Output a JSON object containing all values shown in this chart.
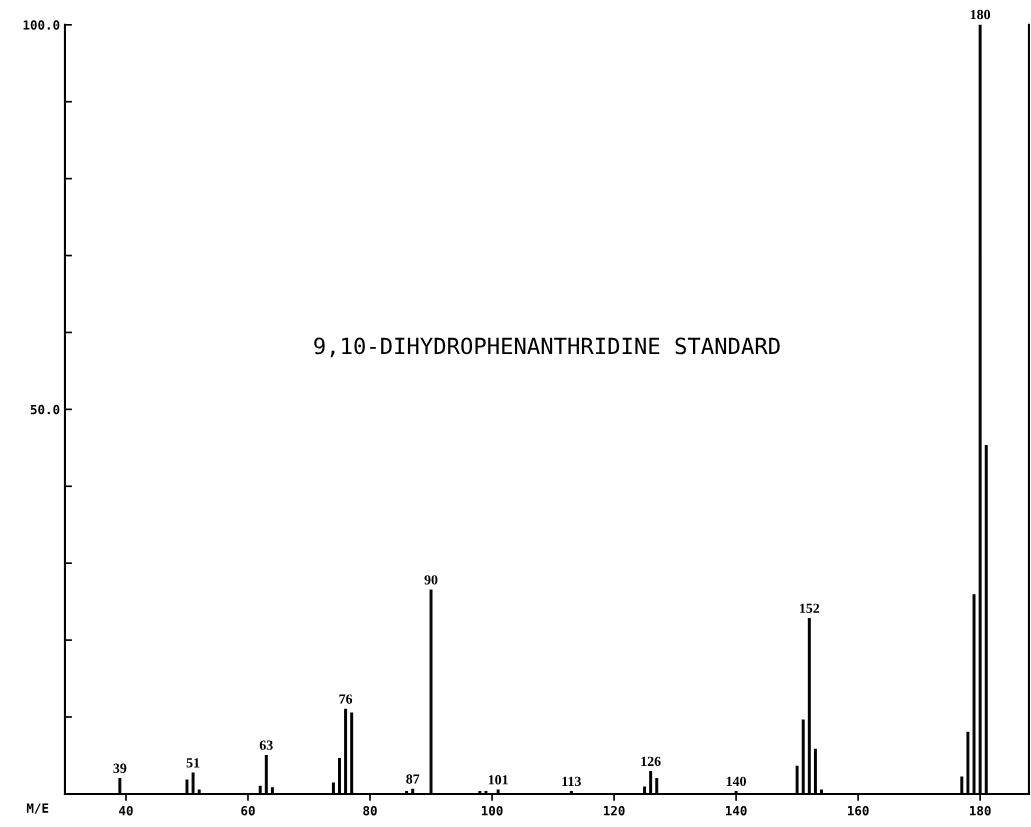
{
  "chart_data": {
    "type": "bar",
    "title": "9,10-DIHYDROPHENANTHRIDINE STANDARD",
    "xlabel": "M/E",
    "x": [
      39,
      50,
      51,
      52,
      62,
      63,
      64,
      74,
      75,
      76,
      77,
      86,
      87,
      90,
      98,
      99,
      101,
      113,
      125,
      126,
      127,
      140,
      150,
      151,
      152,
      153,
      154,
      177,
      178,
      179,
      180,
      181
    ],
    "values": [
      2.0,
      1.8,
      2.7,
      0.5,
      1.0,
      5.0,
      0.8,
      1.4,
      4.6,
      11.0,
      10.5,
      0.3,
      0.6,
      26.5,
      0.3,
      0.3,
      0.5,
      0.3,
      0.9,
      2.9,
      2.0,
      0.3,
      3.6,
      9.6,
      22.8,
      5.8,
      0.5,
      2.2,
      8.0,
      25.9,
      100,
      45.3
    ],
    "color": "#000000",
    "annotations": [
      {
        "text": "39",
        "x": 39,
        "y": 2.0
      },
      {
        "text": "51",
        "x": 51,
        "y": 2.7
      },
      {
        "text": "63",
        "x": 63,
        "y": 5.0
      },
      {
        "text": "76",
        "x": 76,
        "y": 11.0
      },
      {
        "text": "87",
        "x": 87,
        "y": 0.6
      },
      {
        "text": "90",
        "x": 90,
        "y": 26.5
      },
      {
        "text": "101",
        "x": 101,
        "y": 0.5
      },
      {
        "text": "113",
        "x": 113,
        "y": 0.3
      },
      {
        "text": "126",
        "x": 126,
        "y": 2.9
      },
      {
        "text": "140",
        "x": 140,
        "y": 0.3
      },
      {
        "text": "152",
        "x": 152,
        "y": 22.8
      },
      {
        "text": "180",
        "x": 180,
        "y": 100
      }
    ],
    "xlim": [
      30,
      188
    ],
    "xticks": [
      40,
      60,
      80,
      100,
      120,
      140,
      160,
      180
    ],
    "ylim": [
      0,
      100
    ],
    "yticks": [
      {
        "value": 0,
        "label": null
      },
      {
        "value": 10,
        "label": null
      },
      {
        "value": 20,
        "label": null
      },
      {
        "value": 30,
        "label": null
      },
      {
        "value": 40,
        "label": null
      },
      {
        "value": 50,
        "label": "50.0"
      },
      {
        "value": 60,
        "label": null
      },
      {
        "value": 70,
        "label": null
      },
      {
        "value": 80,
        "label": null
      },
      {
        "value": 90,
        "label": null
      },
      {
        "value": 100,
        "label": "100.0"
      }
    ],
    "grid": false
  }
}
